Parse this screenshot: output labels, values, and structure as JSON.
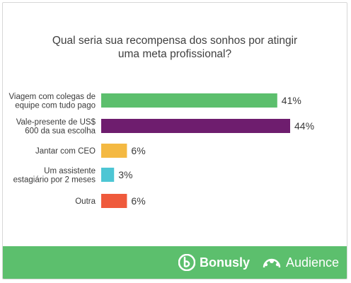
{
  "chart_data": {
    "type": "bar",
    "orientation": "horizontal",
    "title_lines": [
      "Qual seria sua recompensa dos sonhos por atingir",
      "uma meta profissional?"
    ],
    "categories": [
      [
        "Viagem com colegas de",
        "equipe com tudo pago"
      ],
      [
        "Vale-presente de US$",
        "600 da sua escolha"
      ],
      [
        "Jantar com CEO"
      ],
      [
        "Um assistente",
        "estagiário por 2 meses"
      ],
      [
        "Outra"
      ]
    ],
    "values": [
      41,
      44,
      6,
      3,
      6
    ],
    "value_labels": [
      "41%",
      "44%",
      "6%",
      "3%",
      "6%"
    ],
    "colors": [
      "#5cbf6d",
      "#6e1d6e",
      "#f4b942",
      "#4dc6d4",
      "#ef5a3c"
    ],
    "xlim": [
      0,
      44
    ],
    "grid": false
  },
  "footer": {
    "color": "#5cbf6d",
    "logos": [
      "Bonusly",
      "Audience"
    ]
  }
}
